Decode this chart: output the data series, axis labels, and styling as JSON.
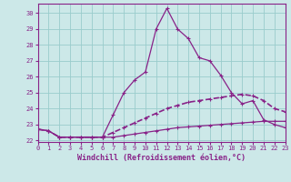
{
  "xlabel": "Windchill (Refroidissement éolien,°C)",
  "background_color": "#cce8e8",
  "grid_color": "#99cccc",
  "line_color": "#882288",
  "x_values": [
    0,
    1,
    2,
    3,
    4,
    5,
    6,
    7,
    8,
    9,
    10,
    11,
    12,
    13,
    14,
    15,
    16,
    17,
    18,
    19,
    20,
    21,
    22,
    23
  ],
  "line1": [
    22.7,
    22.6,
    22.2,
    22.2,
    22.2,
    22.2,
    22.2,
    23.6,
    25.0,
    25.8,
    26.3,
    29.0,
    30.3,
    29.0,
    28.4,
    27.2,
    27.0,
    26.1,
    25.0,
    24.3,
    24.5,
    23.3,
    23.0,
    22.8
  ],
  "line2": [
    22.7,
    22.6,
    22.2,
    22.2,
    22.2,
    22.2,
    22.2,
    22.5,
    22.8,
    23.1,
    23.4,
    23.7,
    24.0,
    24.2,
    24.4,
    24.5,
    24.6,
    24.7,
    24.8,
    24.9,
    24.8,
    24.5,
    24.0,
    23.8
  ],
  "line3": [
    22.7,
    22.6,
    22.2,
    22.2,
    22.2,
    22.2,
    22.2,
    22.2,
    22.3,
    22.4,
    22.5,
    22.6,
    22.7,
    22.8,
    22.85,
    22.9,
    22.95,
    23.0,
    23.05,
    23.1,
    23.15,
    23.2,
    23.2,
    23.2
  ],
  "ylim": [
    21.9,
    30.6
  ],
  "xlim": [
    0,
    23
  ],
  "yticks": [
    22,
    23,
    24,
    25,
    26,
    27,
    28,
    29,
    30
  ],
  "xticks": [
    0,
    1,
    2,
    3,
    4,
    5,
    6,
    7,
    8,
    9,
    10,
    11,
    12,
    13,
    14,
    15,
    16,
    17,
    18,
    19,
    20,
    21,
    22,
    23
  ],
  "tick_fontsize": 5.0,
  "xlabel_fontsize": 6.0
}
